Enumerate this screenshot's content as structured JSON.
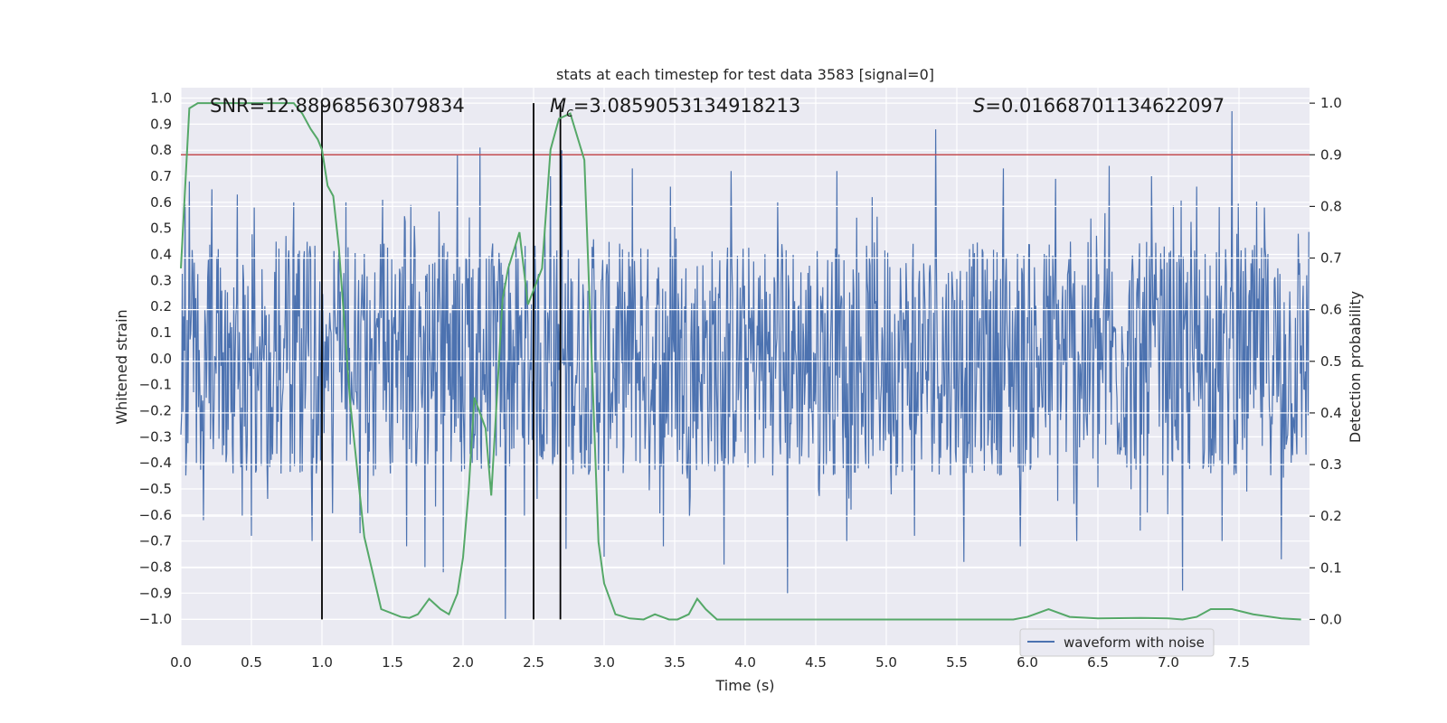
{
  "chart_data": {
    "type": "line",
    "title": "stats at each timestep for test data 3583 [signal=0]",
    "xlabel": "Time (s)",
    "ylabel_left": "Whitened strain",
    "ylabel_right": "Detection probability",
    "xlim": [
      0.0,
      8.0
    ],
    "ylim_left": [
      -1.1,
      1.04
    ],
    "ylim_right": [
      -0.05,
      1.03
    ],
    "x_ticks": [
      0.0,
      0.5,
      1.0,
      1.5,
      2.0,
      2.5,
      3.0,
      3.5,
      4.0,
      4.5,
      5.0,
      5.5,
      6.0,
      6.5,
      7.0,
      7.5
    ],
    "x_tick_labels": [
      "0.0",
      "0.5",
      "1.0",
      "1.5",
      "2.0",
      "2.5",
      "3.0",
      "3.5",
      "4.0",
      "4.5",
      "5.0",
      "5.5",
      "6.0",
      "6.5",
      "7.0",
      "7.5"
    ],
    "y_left_ticks": [
      1.0,
      0.9,
      0.8,
      0.7,
      0.6,
      0.5,
      0.4,
      0.3,
      0.2,
      0.1,
      0.0,
      -0.1,
      -0.2,
      -0.3,
      -0.4,
      -0.5,
      -0.6,
      -0.7,
      -0.8,
      -0.9,
      -1.0
    ],
    "y_left_tick_labels": [
      "1.0",
      "0.9",
      "0.8",
      "0.7",
      "0.6",
      "0.5",
      "0.4",
      "0.3",
      "0.2",
      "0.1",
      "0.0",
      "−0.1",
      "−0.2",
      "−0.3",
      "−0.4",
      "−0.5",
      "−0.6",
      "−0.7",
      "−0.8",
      "−0.9",
      "−1.0"
    ],
    "y_right_ticks": [
      1.0,
      0.9,
      0.8,
      0.7,
      0.6,
      0.5,
      0.4,
      0.3,
      0.2,
      0.1,
      0.0
    ],
    "y_right_tick_labels": [
      "1.0",
      "0.9",
      "0.8",
      "0.7",
      "0.6",
      "0.5",
      "0.4",
      "0.3",
      "0.2",
      "0.1",
      "0.0"
    ],
    "threshold": 0.9,
    "vlines": [
      1.0,
      2.5,
      2.69
    ],
    "annotations": {
      "snr": "SNR=12.88968563079834",
      "mc_symbol": "M",
      "mc_sub": "c",
      "mc_value": "=3.0859053134918213",
      "s_symbol": "S",
      "s_value": "=0.01668701134622097"
    },
    "legend": {
      "label": "waveform with noise",
      "position": "lower-right"
    },
    "waveform": {
      "name": "waveform with noise",
      "duration": 8.0,
      "n_samples": 1600,
      "core_amplitude": 0.45,
      "spikes_up": [
        [
          0.06,
          0.68
        ],
        [
          0.22,
          0.65
        ],
        [
          0.4,
          0.63
        ],
        [
          0.52,
          0.58
        ],
        [
          0.8,
          0.6
        ],
        [
          1.17,
          0.6
        ],
        [
          1.43,
          0.61
        ],
        [
          1.63,
          0.59
        ],
        [
          1.96,
          0.78
        ],
        [
          2.12,
          0.81
        ],
        [
          2.3,
          0.66
        ],
        [
          2.62,
          0.7
        ],
        [
          2.7,
          0.8
        ],
        [
          3.2,
          0.73
        ],
        [
          3.47,
          0.66
        ],
        [
          3.9,
          0.72
        ],
        [
          4.23,
          0.6
        ],
        [
          4.65,
          0.72
        ],
        [
          4.9,
          0.62
        ],
        [
          5.35,
          0.88
        ],
        [
          5.83,
          0.73
        ],
        [
          6.2,
          0.69
        ],
        [
          6.58,
          0.74
        ],
        [
          6.88,
          0.7
        ],
        [
          7.2,
          0.66
        ],
        [
          7.45,
          0.95
        ],
        [
          7.68,
          0.58
        ]
      ],
      "spikes_down": [
        [
          0.16,
          -0.62
        ],
        [
          0.5,
          -0.68
        ],
        [
          0.93,
          -0.7
        ],
        [
          1.27,
          -0.67
        ],
        [
          1.6,
          -0.72
        ],
        [
          1.73,
          -0.8
        ],
        [
          1.86,
          -0.82
        ],
        [
          2.3,
          -1.0
        ],
        [
          2.73,
          -0.73
        ],
        [
          3.0,
          -0.76
        ],
        [
          3.42,
          -0.72
        ],
        [
          3.85,
          -0.79
        ],
        [
          4.3,
          -0.9
        ],
        [
          4.72,
          -0.7
        ],
        [
          5.2,
          -0.68
        ],
        [
          5.55,
          -0.78
        ],
        [
          5.95,
          -0.72
        ],
        [
          6.35,
          -0.7
        ],
        [
          6.8,
          -0.66
        ],
        [
          7.1,
          -0.89
        ],
        [
          7.38,
          -0.7
        ],
        [
          7.8,
          -0.77
        ]
      ]
    },
    "detection_probability": {
      "x": [
        0.0,
        0.06,
        0.12,
        0.2,
        0.3,
        0.4,
        0.5,
        0.6,
        0.7,
        0.8,
        0.86,
        0.92,
        0.97,
        1.0,
        1.04,
        1.08,
        1.12,
        1.2,
        1.3,
        1.42,
        1.56,
        1.62,
        1.68,
        1.76,
        1.84,
        1.9,
        1.96,
        2.0,
        2.04,
        2.08,
        2.16,
        2.2,
        2.28,
        2.32,
        2.4,
        2.46,
        2.56,
        2.62,
        2.68,
        2.76,
        2.86,
        2.96,
        3.0,
        3.08,
        3.18,
        3.28,
        3.36,
        3.46,
        3.52,
        3.6,
        3.66,
        3.72,
        3.8,
        3.9,
        4.0,
        4.2,
        4.5,
        4.8,
        5.0,
        5.5,
        5.9,
        6.0,
        6.15,
        6.3,
        6.5,
        6.8,
        7.0,
        7.1,
        7.2,
        7.3,
        7.45,
        7.6,
        7.8,
        7.94
      ],
      "y": [
        0.68,
        0.99,
        1.0,
        1.0,
        1.0,
        1.0,
        1.0,
        1.0,
        1.0,
        1.0,
        0.98,
        0.95,
        0.93,
        0.91,
        0.84,
        0.82,
        0.72,
        0.42,
        0.16,
        0.02,
        0.005,
        0.003,
        0.01,
        0.04,
        0.02,
        0.01,
        0.05,
        0.12,
        0.25,
        0.43,
        0.37,
        0.24,
        0.62,
        0.68,
        0.75,
        0.61,
        0.68,
        0.91,
        0.97,
        0.98,
        0.89,
        0.15,
        0.07,
        0.01,
        0.002,
        0.0,
        0.01,
        0.0,
        0.0,
        0.01,
        0.04,
        0.02,
        0.0,
        0.0,
        0.0,
        0.0,
        0.0,
        0.0,
        0.0,
        0.0,
        0.0,
        0.005,
        0.02,
        0.005,
        0.002,
        0.003,
        0.002,
        0.0,
        0.005,
        0.02,
        0.02,
        0.01,
        0.002,
        0.0
      ]
    }
  }
}
